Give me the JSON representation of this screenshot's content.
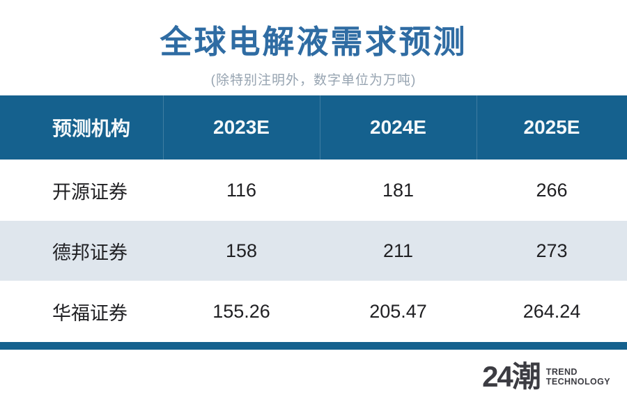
{
  "title": "全球电解液需求预测",
  "subtitle": "(除特别注明外，数字单位为万吨)",
  "table": {
    "columns": [
      "预测机构",
      "2023E",
      "2024E",
      "2025E"
    ],
    "rows": [
      [
        "开源证券",
        "116",
        "181",
        "266"
      ],
      [
        "德邦证券",
        "158",
        "211",
        "273"
      ],
      [
        "华福证券",
        "155.26",
        "205.47",
        "264.24"
      ]
    ]
  },
  "logo": {
    "mark": "24潮",
    "line1": "TREND",
    "line2": "TECHNOLOGY"
  },
  "colors": {
    "header_bg": "#15618E",
    "title_blue": "#2F6CA3",
    "alt_row_bg": "#DFE6ED",
    "subtitle_gray": "#97A4B1",
    "logo_dark": "#3C3C42"
  },
  "chart_data": {
    "type": "table",
    "title": "全球电解液需求预测",
    "subtitle": "(除特别注明外，数字单位为万吨)",
    "unit": "万吨",
    "columns": [
      "预测机构",
      "2023E",
      "2024E",
      "2025E"
    ],
    "series": [
      {
        "name": "开源证券",
        "values": [
          116,
          181,
          266
        ]
      },
      {
        "name": "德邦证券",
        "values": [
          158,
          211,
          273
        ]
      },
      {
        "name": "华福证券",
        "values": [
          155.26,
          205.47,
          264.24
        ]
      }
    ]
  }
}
